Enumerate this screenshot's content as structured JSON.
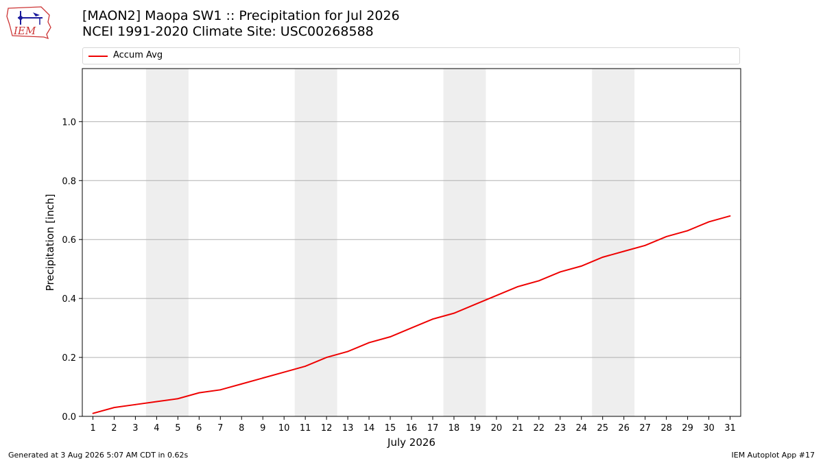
{
  "header": {
    "title_line1": "[MAON2] Maopa SW1 :: Precipitation for Jul 2026",
    "title_line2": "NCEI 1991-2020 Climate Site: USC00268588"
  },
  "logo": {
    "text": "IEM",
    "icon": "iem-logo-icon"
  },
  "colors": {
    "series": "#ee0000",
    "weekend_band": "#eeeeee",
    "grid": "#b0b0b0"
  },
  "footer": {
    "generated": "Generated at 3 Aug 2026 5:07 AM CDT in 0.62s",
    "app": "IEM Autoplot App #17"
  },
  "chart_data": {
    "type": "line",
    "xlabel": "July 2026",
    "ylabel": "Precipitation [inch]",
    "xlim": [
      0.5,
      31.5
    ],
    "ylim": [
      0,
      1.18
    ],
    "yticks": [
      0.0,
      0.2,
      0.4,
      0.6,
      0.8,
      1.0
    ],
    "ytick_labels": [
      "0.0",
      "0.2",
      "0.4",
      "0.6",
      "0.8",
      "1.0"
    ],
    "xticks": [
      1,
      2,
      3,
      4,
      5,
      6,
      7,
      8,
      9,
      10,
      11,
      12,
      13,
      14,
      15,
      16,
      17,
      18,
      19,
      20,
      21,
      22,
      23,
      24,
      25,
      26,
      27,
      28,
      29,
      30,
      31
    ],
    "grid": "horizontal",
    "legend_position": "top",
    "shaded_days": [
      [
        4,
        5
      ],
      [
        11,
        12
      ],
      [
        18,
        19
      ],
      [
        25,
        26
      ]
    ],
    "series": [
      {
        "name": "Accum Avg",
        "x": [
          1,
          2,
          3,
          4,
          5,
          6,
          7,
          8,
          9,
          10,
          11,
          12,
          13,
          14,
          15,
          16,
          17,
          18,
          19,
          20,
          21,
          22,
          23,
          24,
          25,
          26,
          27,
          28,
          29,
          30,
          31
        ],
        "y": [
          0.01,
          0.03,
          0.04,
          0.05,
          0.06,
          0.08,
          0.09,
          0.11,
          0.13,
          0.15,
          0.17,
          0.2,
          0.22,
          0.25,
          0.27,
          0.3,
          0.33,
          0.35,
          0.38,
          0.41,
          0.44,
          0.46,
          0.49,
          0.51,
          0.54,
          0.56,
          0.58,
          0.61,
          0.63,
          0.66,
          0.68
        ]
      }
    ]
  }
}
